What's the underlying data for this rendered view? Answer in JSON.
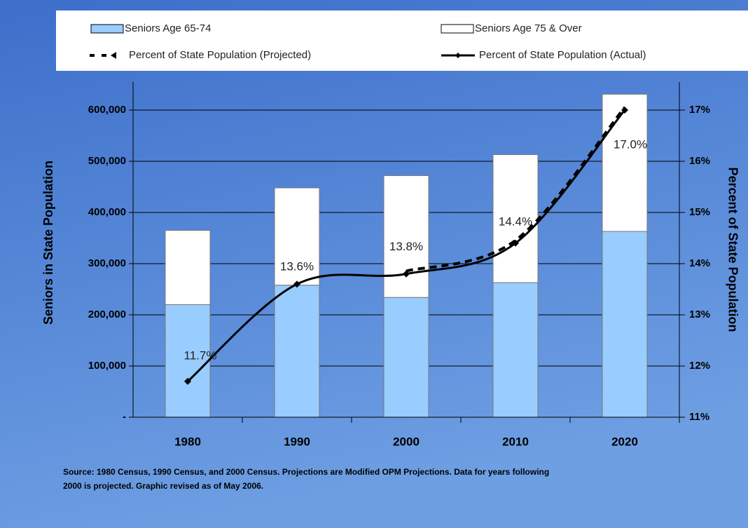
{
  "chart_data": {
    "type": "bar",
    "stacked": true,
    "categories": [
      "1980",
      "1990",
      "2000",
      "2010",
      "2020"
    ],
    "series": [
      {
        "name": "Seniors Age 65-74",
        "type": "bar",
        "color": "#99ccff",
        "values": [
          220000,
          258000,
          234000,
          263000,
          363000
        ]
      },
      {
        "name": "Seniors Age 75 & Over",
        "type": "bar",
        "color": "#ffffff",
        "values": [
          145000,
          190000,
          238000,
          250000,
          268000
        ]
      },
      {
        "name": "Percent of State Population (Projected)",
        "type": "line",
        "style": "dashed",
        "color": "#000000",
        "axis": "y2",
        "values": [
          null,
          null,
          13.8,
          14.4,
          17.0
        ]
      },
      {
        "name": "Percent of State Population (Actual)",
        "type": "line",
        "style": "solid",
        "color": "#000000",
        "axis": "y2",
        "values": [
          11.7,
          13.6,
          13.8,
          14.4,
          17.0
        ],
        "value_labels": [
          "11.7%",
          "13.6%",
          "13.8%",
          "14.4%",
          "17.0%"
        ]
      }
    ],
    "ylabel": "Seniors in State Population",
    "y2label": "Percent of State Population",
    "ylim": [
      0,
      600000
    ],
    "yticks": [
      {
        "value": 0,
        "label": "-"
      },
      {
        "value": 100000,
        "label": "100,000"
      },
      {
        "value": 200000,
        "label": "200,000"
      },
      {
        "value": 300000,
        "label": "300,000"
      },
      {
        "value": 400000,
        "label": "400,000"
      },
      {
        "value": 500000,
        "label": "500,000"
      },
      {
        "value": 600000,
        "label": "600,000"
      }
    ],
    "y2lim": [
      11,
      17
    ],
    "y2ticks": [
      {
        "value": 11,
        "label": "11%"
      },
      {
        "value": 12,
        "label": "12%"
      },
      {
        "value": 13,
        "label": "13%"
      },
      {
        "value": 14,
        "label": "14%"
      },
      {
        "value": 15,
        "label": "15%"
      },
      {
        "value": 16,
        "label": "16%"
      },
      {
        "value": 17,
        "label": "17%"
      }
    ],
    "grid": true,
    "legend": "top",
    "source": "Source: 1980 Census, 1990 Census, and 2000 Census.  Projections are Modified OPM Projections.  Data for years following 2000 is projected.  Graphic revised as of May 2006."
  }
}
